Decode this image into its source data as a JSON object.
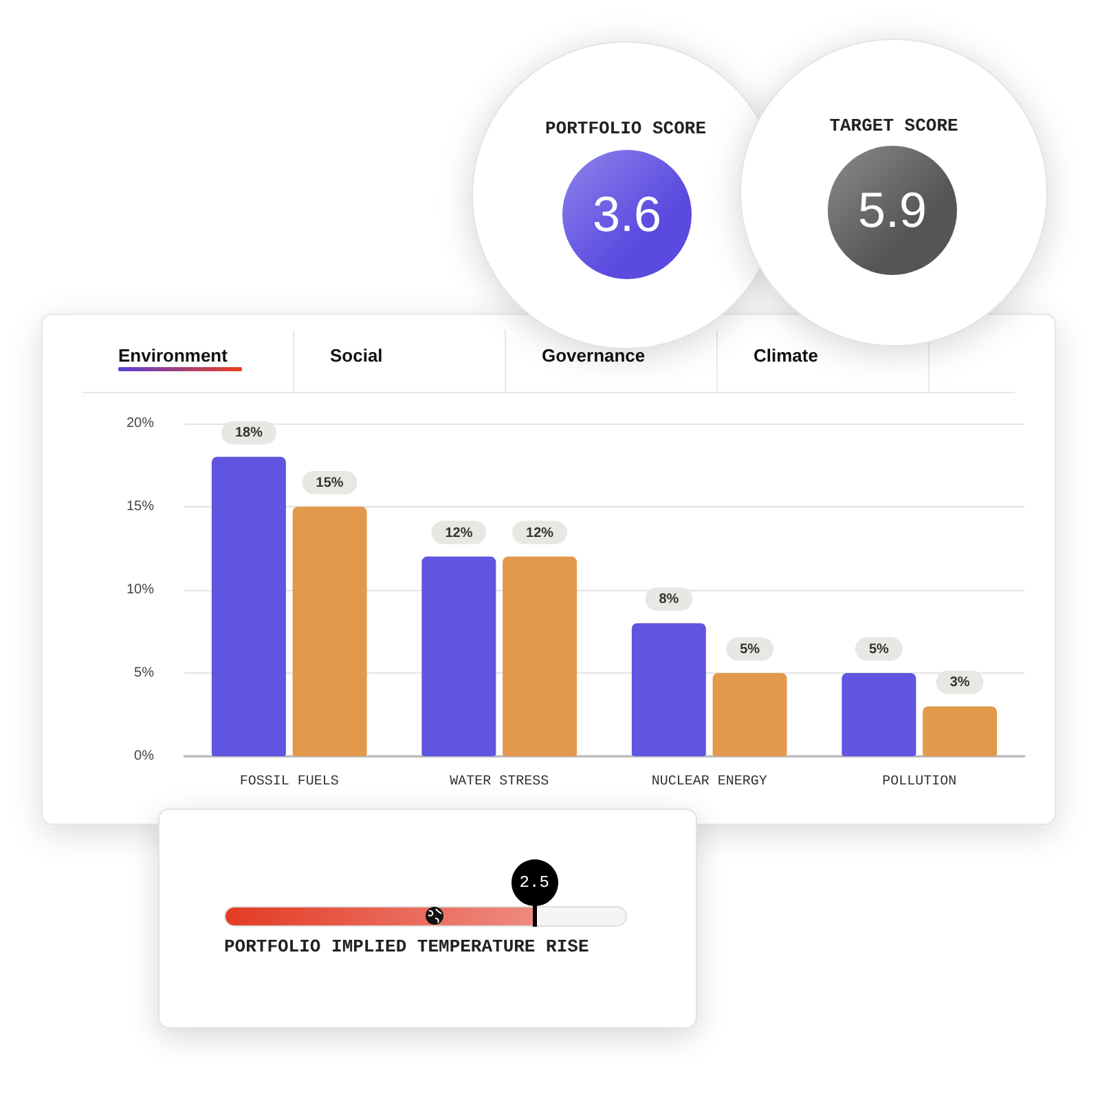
{
  "chart_data": [
    {
      "type": "other",
      "title": "PORTFOLIO SCORE",
      "values": [
        3.6
      ],
      "data_labels": true,
      "color": "#5a4ae0"
    },
    {
      "type": "other",
      "title": "TARGET SCORE",
      "values": [
        5.9
      ],
      "data_labels": true,
      "color": "#555555"
    },
    {
      "type": "other",
      "annotations": [
        "Environment",
        "Social",
        "Governance",
        "Climate"
      ]
    },
    {
      "type": "bar",
      "categories": [
        "FOSSIL FUELS",
        "WATER STRESS",
        "NUCLEAR ENERGY",
        "POLLUTION"
      ],
      "series": [
        {
          "color": "#5f55e0",
          "values": [
            18,
            12,
            8,
            5
          ],
          "value_labels": [
            "18%",
            "12%",
            "8%",
            "5%"
          ]
        },
        {
          "color": "#e2994c",
          "values": [
            15,
            12,
            5,
            3
          ],
          "value_labels": [
            "15%",
            "12%",
            "5%",
            "3%"
          ]
        }
      ],
      "ylim": [
        0,
        20
      ],
      "yticks": [
        {
          "value": 0,
          "label": "0%"
        },
        {
          "value": 5,
          "label": "5%"
        },
        {
          "value": 10,
          "label": "10%"
        },
        {
          "value": 15,
          "label": "15%"
        },
        {
          "value": 20,
          "label": "20%"
        }
      ],
      "grid": "y"
    },
    {
      "type": "other",
      "title": "PORTFOLIO IMPLIED TEMPERATURE RISE",
      "values": [
        2.5
      ],
      "data_labels": true
    }
  ]
}
